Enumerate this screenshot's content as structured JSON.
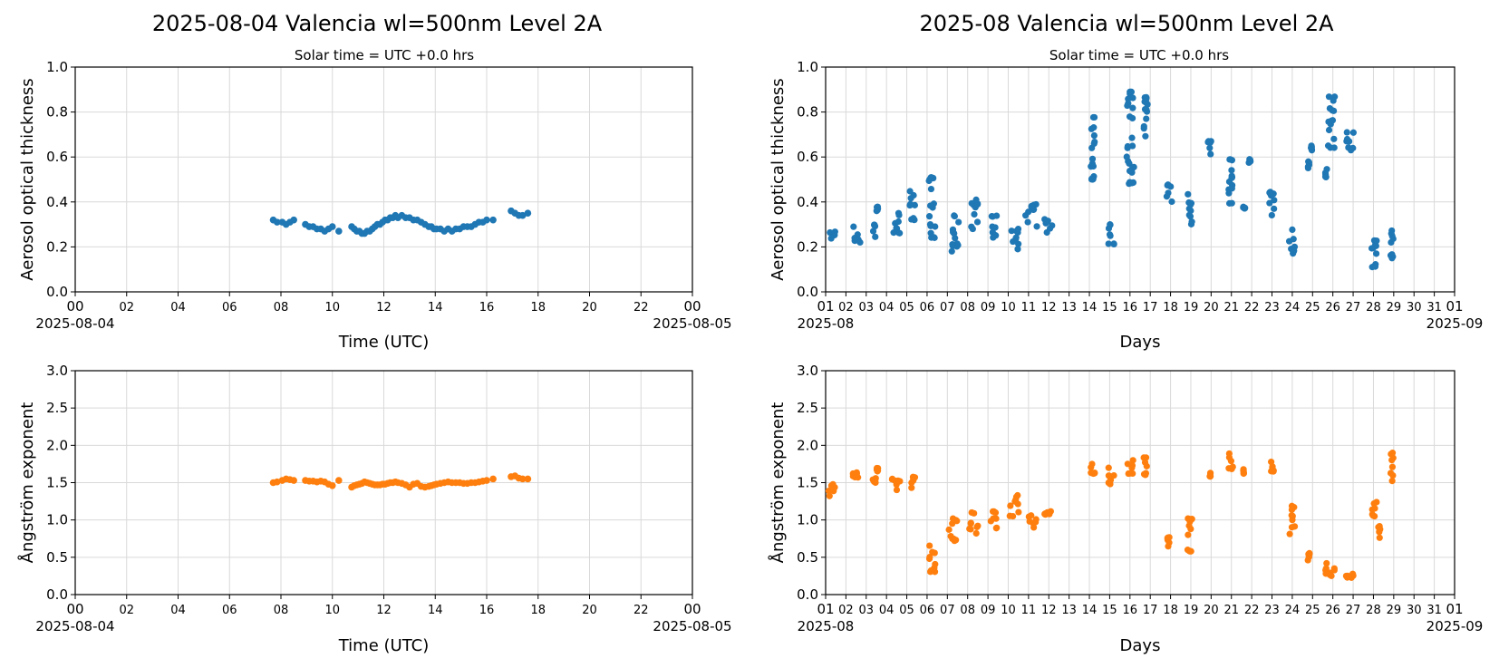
{
  "colors": {
    "aod": "#1f77b4",
    "angstrom": "#ff7f0e"
  },
  "chart_data": [
    {
      "type": "scatter",
      "title": "2025-08-04  Valencia  wl=500nm  Level 2A",
      "subtitle": "Solar time = UTC +0.0 hrs",
      "xlabel": "Time (UTC)",
      "ylabel": "Aerosol optical thickness",
      "xlim": [
        0,
        24
      ],
      "ylim": [
        0,
        1.0
      ],
      "yticks": [
        "0.0",
        "0.2",
        "0.4",
        "0.6",
        "0.8",
        "1.0"
      ],
      "xticks": [
        "00",
        "02",
        "04",
        "06",
        "08",
        "10",
        "12",
        "14",
        "16",
        "18",
        "20",
        "22",
        "00"
      ],
      "xstart_label": "2025-08-04",
      "xend_label": "2025-08-05",
      "grid": true,
      "series": [
        {
          "color": "#1f77b4",
          "x": [
            7.7,
            7.85,
            8.05,
            8.2,
            8.35,
            8.5,
            8.95,
            9.1,
            9.25,
            9.4,
            9.55,
            9.7,
            9.85,
            10.0,
            10.25,
            10.75,
            10.85,
            10.95,
            11.05,
            11.15,
            11.25,
            11.35,
            11.45,
            11.55,
            11.65,
            11.75,
            11.85,
            11.95,
            12.05,
            12.15,
            12.25,
            12.35,
            12.45,
            12.55,
            12.7,
            12.85,
            13.0,
            13.15,
            13.3,
            13.45,
            13.6,
            13.75,
            13.85,
            13.95,
            14.05,
            14.2,
            14.35,
            14.5,
            14.65,
            14.8,
            14.95,
            15.1,
            15.25,
            15.4,
            15.55,
            15.7,
            15.85,
            16.0,
            16.25,
            16.95,
            17.1,
            17.25,
            17.4,
            17.6
          ],
          "y": [
            0.32,
            0.31,
            0.31,
            0.3,
            0.31,
            0.32,
            0.3,
            0.29,
            0.29,
            0.28,
            0.28,
            0.27,
            0.28,
            0.29,
            0.27,
            0.29,
            0.28,
            0.27,
            0.27,
            0.26,
            0.26,
            0.27,
            0.27,
            0.28,
            0.29,
            0.3,
            0.3,
            0.31,
            0.32,
            0.32,
            0.33,
            0.33,
            0.34,
            0.33,
            0.34,
            0.33,
            0.33,
            0.32,
            0.32,
            0.31,
            0.3,
            0.29,
            0.29,
            0.28,
            0.28,
            0.28,
            0.27,
            0.28,
            0.27,
            0.28,
            0.28,
            0.29,
            0.29,
            0.29,
            0.3,
            0.31,
            0.31,
            0.32,
            0.32,
            0.36,
            0.35,
            0.34,
            0.34,
            0.35
          ]
        }
      ]
    },
    {
      "type": "scatter",
      "title": "2025-08  Valencia  wl=500nm  Level 2A",
      "subtitle": "Solar time = UTC +0.0 hrs",
      "xlabel": "Days",
      "ylabel": "Aerosol optical thickness",
      "xlim": [
        1,
        32
      ],
      "ylim": [
        0,
        1.0
      ],
      "yticks": [
        "0.0",
        "0.2",
        "0.4",
        "0.6",
        "0.8",
        "1.0"
      ],
      "xticks": [
        "01",
        "02",
        "03",
        "04",
        "05",
        "06",
        "07",
        "08",
        "09",
        "10",
        "11",
        "12",
        "13",
        "14",
        "15",
        "16",
        "17",
        "18",
        "19",
        "20",
        "21",
        "22",
        "23",
        "24",
        "25",
        "26",
        "27",
        "28",
        "29",
        "30",
        "31",
        "01"
      ],
      "xstart_label": "2025-08",
      "xend_label": "2025-09",
      "grid": true,
      "series": [
        {
          "color": "#1f77b4",
          "clusters": [
            [
              1.1,
              1.55,
              0.23,
              0.27
            ],
            [
              2.2,
              2.75,
              0.22,
              0.29
            ],
            [
              3.3,
              3.5,
              0.24,
              0.3
            ],
            [
              3.5,
              3.6,
              0.36,
              0.38
            ],
            [
              4.15,
              4.75,
              0.26,
              0.35
            ],
            [
              5.1,
              5.5,
              0.32,
              0.45
            ],
            [
              6.0,
              6.5,
              0.24,
              0.51
            ],
            [
              7.0,
              7.6,
              0.18,
              0.34
            ],
            [
              8.0,
              8.6,
              0.28,
              0.41
            ],
            [
              9.1,
              9.6,
              0.24,
              0.34
            ],
            [
              10.0,
              10.6,
              0.19,
              0.28
            ],
            [
              10.8,
              11.5,
              0.29,
              0.39
            ],
            [
              11.7,
              12.3,
              0.26,
              0.33
            ],
            [
              14.05,
              14.3,
              0.5,
              0.78
            ],
            [
              14.8,
              15.3,
              0.21,
              0.3
            ],
            [
              15.8,
              16.25,
              0.48,
              0.89
            ],
            [
              16.6,
              16.9,
              0.67,
              0.87
            ],
            [
              17.75,
              18.1,
              0.4,
              0.48
            ],
            [
              18.8,
              19.1,
              0.3,
              0.44
            ],
            [
              19.8,
              20.05,
              0.61,
              0.67
            ],
            [
              20.8,
              21.1,
              0.39,
              0.59
            ],
            [
              21.55,
              21.7,
              0.37,
              0.38
            ],
            [
              21.85,
              22.0,
              0.56,
              0.59
            ],
            [
              22.8,
              23.15,
              0.34,
              0.45
            ],
            [
              23.8,
              24.25,
              0.17,
              0.28
            ],
            [
              24.75,
              24.9,
              0.55,
              0.58
            ],
            [
              24.9,
              25.0,
              0.63,
              0.66
            ],
            [
              25.6,
              25.75,
              0.51,
              0.55
            ],
            [
              25.7,
              26.2,
              0.64,
              0.87
            ],
            [
              26.6,
              27.1,
              0.63,
              0.71
            ],
            [
              27.8,
              28.25,
              0.11,
              0.23
            ],
            [
              28.8,
              29.0,
              0.15,
              0.29
            ]
          ]
        }
      ]
    },
    {
      "type": "scatter",
      "xlabel": "Time (UTC)",
      "ylabel": "Ångström exponent",
      "xlim": [
        0,
        24
      ],
      "ylim": [
        0,
        3.0
      ],
      "yticks": [
        "0.0",
        "0.5",
        "1.0",
        "1.5",
        "2.0",
        "2.5",
        "3.0"
      ],
      "xticks": [
        "00",
        "02",
        "04",
        "06",
        "08",
        "10",
        "12",
        "14",
        "16",
        "18",
        "20",
        "22",
        "00"
      ],
      "xstart_label": "2025-08-04",
      "xend_label": "2025-08-05",
      "grid": true,
      "series": [
        {
          "color": "#ff7f0e",
          "x": [
            7.7,
            7.85,
            8.05,
            8.2,
            8.35,
            8.5,
            8.95,
            9.1,
            9.25,
            9.4,
            9.55,
            9.7,
            9.85,
            10.0,
            10.25,
            10.75,
            10.85,
            10.95,
            11.05,
            11.15,
            11.25,
            11.35,
            11.45,
            11.55,
            11.65,
            11.75,
            11.85,
            11.95,
            12.05,
            12.15,
            12.25,
            12.35,
            12.45,
            12.55,
            12.7,
            12.85,
            13.0,
            13.15,
            13.3,
            13.45,
            13.6,
            13.75,
            13.85,
            13.95,
            14.05,
            14.2,
            14.35,
            14.5,
            14.65,
            14.8,
            14.95,
            15.1,
            15.25,
            15.4,
            15.55,
            15.7,
            15.85,
            16.0,
            16.25,
            16.95,
            17.1,
            17.25,
            17.4,
            17.6
          ],
          "y": [
            1.5,
            1.51,
            1.53,
            1.55,
            1.54,
            1.53,
            1.53,
            1.52,
            1.52,
            1.51,
            1.52,
            1.51,
            1.48,
            1.46,
            1.53,
            1.44,
            1.46,
            1.47,
            1.48,
            1.49,
            1.51,
            1.5,
            1.49,
            1.48,
            1.47,
            1.47,
            1.47,
            1.48,
            1.48,
            1.49,
            1.5,
            1.5,
            1.51,
            1.5,
            1.49,
            1.47,
            1.44,
            1.48,
            1.49,
            1.45,
            1.44,
            1.45,
            1.46,
            1.47,
            1.48,
            1.49,
            1.5,
            1.51,
            1.5,
            1.5,
            1.5,
            1.49,
            1.49,
            1.5,
            1.5,
            1.51,
            1.52,
            1.53,
            1.55,
            1.58,
            1.59,
            1.56,
            1.55,
            1.55
          ]
        }
      ]
    },
    {
      "type": "scatter",
      "xlabel": "Days",
      "ylabel": "Ångström exponent",
      "xlim": [
        1,
        32
      ],
      "ylim": [
        0,
        3.0
      ],
      "yticks": [
        "0.0",
        "0.5",
        "1.0",
        "1.5",
        "2.0",
        "2.5",
        "3.0"
      ],
      "xticks": [
        "01",
        "02",
        "03",
        "04",
        "05",
        "06",
        "07",
        "08",
        "09",
        "10",
        "11",
        "12",
        "13",
        "14",
        "15",
        "16",
        "17",
        "18",
        "19",
        "20",
        "21",
        "22",
        "23",
        "24",
        "25",
        "26",
        "27",
        "28",
        "29",
        "30",
        "31",
        "01"
      ],
      "xstart_label": "2025-08",
      "xend_label": "2025-09",
      "grid": true,
      "series": [
        {
          "color": "#ff7f0e",
          "clusters": [
            [
              1.1,
              1.55,
              1.3,
              1.48
            ],
            [
              2.2,
              2.75,
              1.5,
              1.64
            ],
            [
              3.5,
              3.6,
              1.65,
              1.7
            ],
            [
              3.3,
              3.5,
              1.5,
              1.58
            ],
            [
              4.15,
              4.75,
              1.4,
              1.55
            ],
            [
              5.1,
              5.5,
              1.42,
              1.58
            ],
            [
              6.0,
              6.5,
              0.3,
              0.66
            ],
            [
              7.0,
              7.6,
              0.72,
              1.02
            ],
            [
              8.0,
              8.6,
              0.82,
              1.1
            ],
            [
              9.1,
              9.6,
              0.85,
              1.12
            ],
            [
              10.0,
              10.6,
              1.05,
              1.33
            ],
            [
              10.8,
              11.5,
              0.9,
              1.06
            ],
            [
              11.7,
              12.3,
              1.07,
              1.16
            ],
            [
              14.05,
              14.3,
              1.62,
              1.79
            ],
            [
              14.8,
              15.3,
              1.48,
              1.7
            ],
            [
              15.8,
              16.25,
              1.6,
              1.8
            ],
            [
              16.6,
              16.9,
              1.6,
              1.84
            ],
            [
              17.75,
              18.1,
              0.62,
              0.77
            ],
            [
              18.8,
              19.1,
              0.58,
              1.02
            ],
            [
              19.8,
              20.05,
              1.58,
              1.68
            ],
            [
              20.8,
              21.1,
              1.68,
              1.9
            ],
            [
              21.55,
              21.7,
              1.62,
              1.68
            ],
            [
              22.8,
              23.15,
              1.65,
              1.78
            ],
            [
              23.8,
              24.25,
              0.8,
              1.2
            ],
            [
              24.75,
              24.9,
              0.45,
              0.56
            ],
            [
              25.6,
              25.75,
              0.28,
              0.42
            ],
            [
              25.7,
              26.2,
              0.18,
              0.35
            ],
            [
              26.6,
              27.1,
              0.22,
              0.28
            ],
            [
              27.8,
              28.25,
              1.05,
              1.26
            ],
            [
              28.2,
              28.35,
              0.76,
              0.92
            ],
            [
              28.8,
              29.0,
              1.52,
              1.9
            ]
          ]
        }
      ]
    }
  ]
}
